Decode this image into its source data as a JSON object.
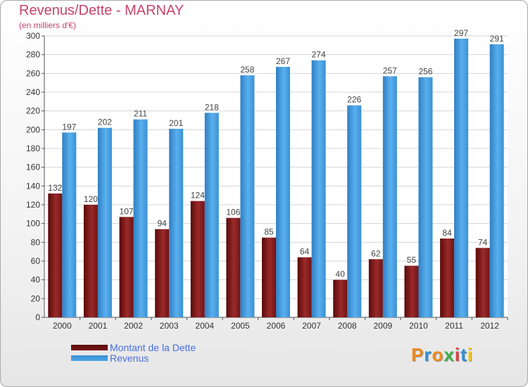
{
  "chart_data": {
    "type": "bar",
    "title": "Revenus/Dette - MARNAY",
    "subtitle": "(en milliers d'€)",
    "categories": [
      "2000",
      "2001",
      "2002",
      "2003",
      "2004",
      "2005",
      "2006",
      "2007",
      "2008",
      "2009",
      "2010",
      "2011",
      "2012"
    ],
    "series": [
      {
        "name": "Montant de la Dette",
        "color": "#7a1515",
        "values": [
          132,
          120,
          107,
          94,
          124,
          106,
          85,
          64,
          40,
          62,
          55,
          84,
          74
        ]
      },
      {
        "name": "Revenus",
        "color": "#4aa6e8",
        "values": [
          197,
          202,
          211,
          201,
          218,
          258,
          267,
          274,
          226,
          257,
          256,
          297,
          291
        ]
      }
    ],
    "ylim": [
      0,
      300
    ],
    "yticks": [
      0,
      20,
      40,
      60,
      80,
      100,
      120,
      140,
      160,
      180,
      200,
      220,
      240,
      260,
      280,
      300
    ],
    "grid": true,
    "legend": "bottom-left"
  },
  "logo": {
    "text": "Proxiti",
    "colors": [
      "#f08a1c",
      "#2f8fd8",
      "#f08a1c",
      "#3bb34a",
      "#e23b3b",
      "#2f8fd8",
      "#f0c419"
    ]
  }
}
